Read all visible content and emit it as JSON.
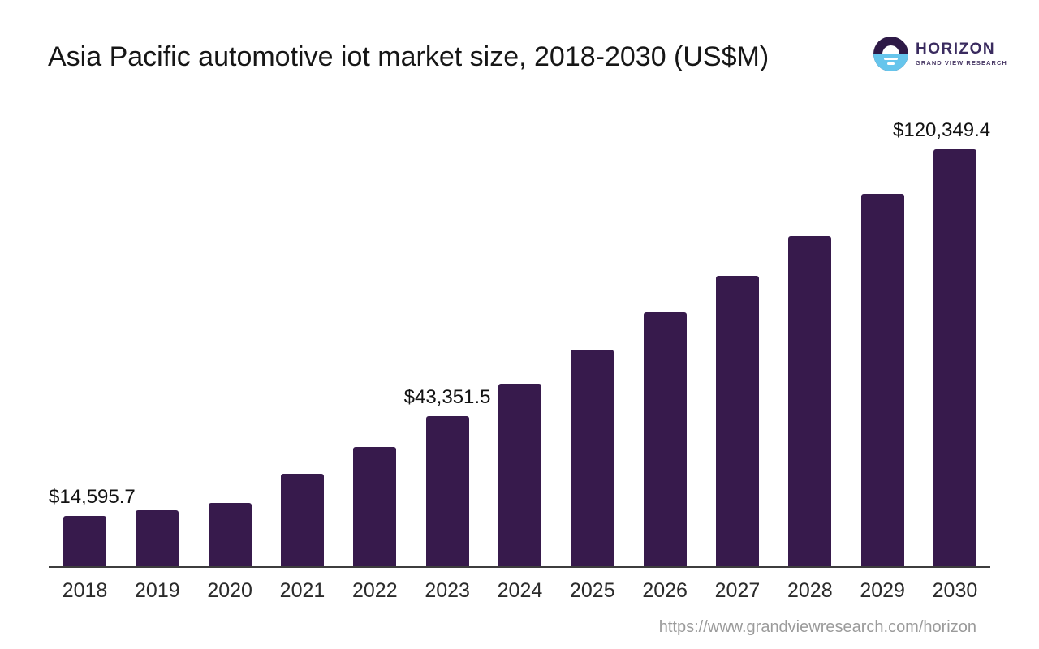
{
  "header": {
    "title": "Asia Pacific automotive iot market size, 2018-2030 (US$M)",
    "logo": {
      "brand": "HORIZON",
      "tagline": "GRAND VIEW RESEARCH",
      "purple": "#2E1A47",
      "blue": "#66C5EC",
      "brand_color": "#3A2B5F"
    }
  },
  "chart_data": {
    "type": "bar",
    "title": "Asia Pacific automotive iot market size, 2018-2030 (US$M)",
    "categories": [
      "2018",
      "2019",
      "2020",
      "2021",
      "2022",
      "2023",
      "2024",
      "2025",
      "2026",
      "2027",
      "2028",
      "2029",
      "2030"
    ],
    "series": [
      {
        "name": "Market size (US$M)",
        "values": [
          14595.7,
          16150,
          18260,
          26700,
          34500,
          43351.5,
          52800,
          62500,
          73200,
          83800,
          95300,
          107500,
          120349.4
        ]
      }
    ],
    "data_labels": {
      "2018": "$14,595.7",
      "2023": "$43,351.5",
      "2030": "$120,349.4"
    },
    "bar_color": "#371A4C",
    "xlabel": "",
    "ylabel": "",
    "ylim": [
      0,
      126000
    ],
    "grid": false,
    "legend": false
  },
  "footer": {
    "url": "https://www.grandviewresearch.com/horizon"
  }
}
